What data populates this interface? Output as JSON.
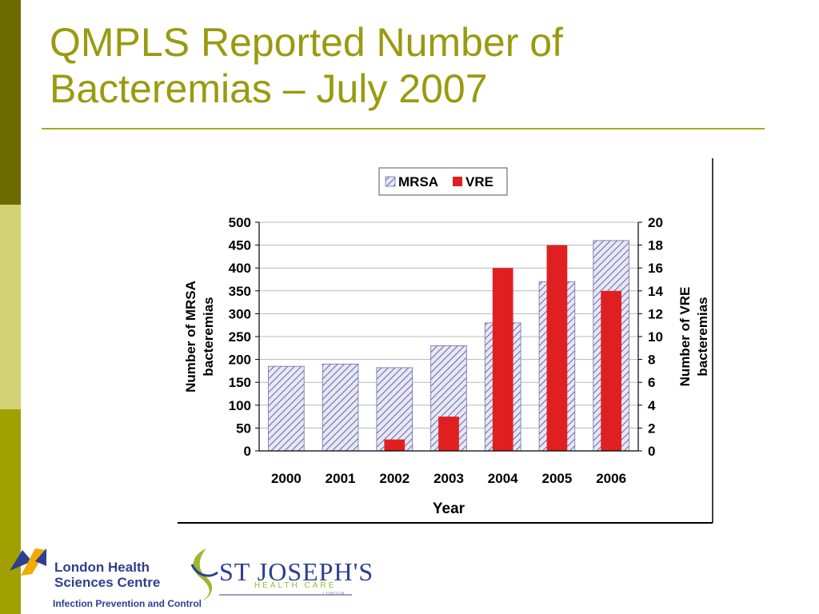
{
  "slide": {
    "title": "QMPLS Reported Number of Bacteremias – July 2007"
  },
  "chart_data": {
    "type": "bar",
    "categories": [
      "2000",
      "2001",
      "2002",
      "2003",
      "2004",
      "2005",
      "2006"
    ],
    "series": [
      {
        "name": "MRSA",
        "axis": "left",
        "pattern": "hatched",
        "values": [
          185,
          190,
          182,
          230,
          280,
          370,
          460
        ]
      },
      {
        "name": "VRE",
        "axis": "right",
        "color": "#e02020",
        "values": [
          0,
          0,
          1,
          3,
          16,
          18,
          14
        ]
      }
    ],
    "xlabel": "Year",
    "ylabel": "Number of MRSA bacteremias",
    "y2label": "Number of VRE bacteremias",
    "ylim": [
      0,
      500
    ],
    "y2lim": [
      0,
      20
    ],
    "yticks": [
      0,
      50,
      100,
      150,
      200,
      250,
      300,
      350,
      400,
      450,
      500
    ],
    "y2ticks": [
      0,
      2,
      4,
      6,
      8,
      10,
      12,
      14,
      16,
      18,
      20
    ],
    "legend": {
      "position": "top-center",
      "entries": [
        "MRSA",
        "VRE"
      ]
    },
    "grid": true
  },
  "logos": {
    "lhsc_line1": "London Health",
    "lhsc_line2": "Sciences Centre",
    "lhsc_sub": "Infection Prevention and Control",
    "sj_name": "ST JOSEPH'S",
    "sj_sub": "HEALTH CARE",
    "sj_city": "LONDON"
  },
  "colors": {
    "title": "#9a9a10",
    "vre": "#e02020",
    "mrsa_hatch": "#6b6fb0",
    "logo_blue": "#2d3f8f",
    "logo_green": "#9bb82e"
  }
}
